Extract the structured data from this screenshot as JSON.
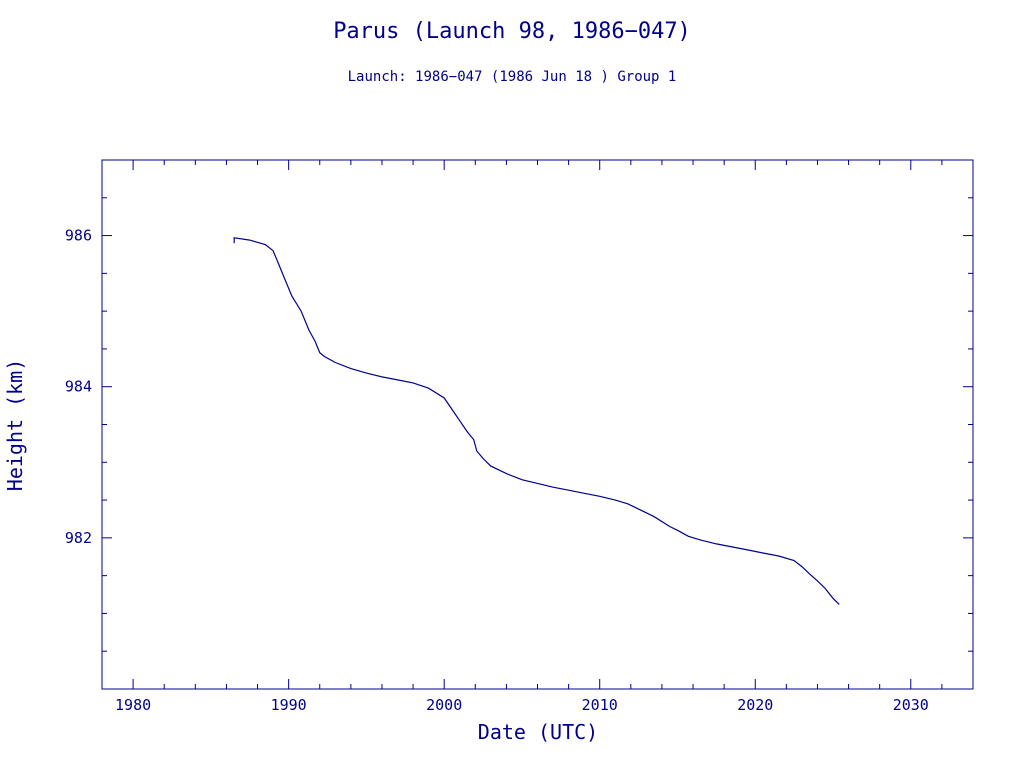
{
  "title": "Parus (Launch 98, 1986−047)",
  "subtitle": "Launch: 1986−047  (1986 Jun 18 )  Group 1",
  "colors": {
    "ink": "#00008b"
  },
  "chart_data": {
    "type": "line",
    "xlabel": "Date (UTC)",
    "ylabel": "Height (km)",
    "xlim": [
      1978,
      2034
    ],
    "ylim": [
      980,
      987
    ],
    "x_ticks": [
      1980,
      1990,
      2000,
      2010,
      2020,
      2030
    ],
    "y_ticks": [
      982,
      984,
      986
    ],
    "grid": false,
    "series": [
      {
        "x": [
          1986.5,
          1986.5,
          1987.5,
          1988.5,
          1989.0,
          1989.3,
          1989.7,
          1990.2,
          1990.8,
          1991.1,
          1991.3,
          1991.7,
          1992.0,
          1992.3,
          1993.0,
          1994.0,
          1995.0,
          1996.0,
          1997.0,
          1998.0,
          1999.0,
          2000.0,
          2000.5,
          2001.0,
          2001.5,
          2001.9,
          2002.1,
          2002.5,
          2003.0,
          2004.0,
          2005.0,
          2006.0,
          2007.0,
          2008.0,
          2009.0,
          2010.0,
          2011.0,
          2011.8,
          2012.5,
          2013.5,
          2014.5,
          2015.0,
          2015.7,
          2016.5,
          2017.5,
          2018.5,
          2019.5,
          2020.5,
          2021.5,
          2022.5,
          2023.0,
          2023.5,
          2024.0,
          2024.5,
          2025.0,
          2025.4
        ],
        "y": [
          985.9,
          985.97,
          985.94,
          985.88,
          985.8,
          985.65,
          985.45,
          985.2,
          985.0,
          984.85,
          984.75,
          984.6,
          984.45,
          984.4,
          984.32,
          984.24,
          984.18,
          984.13,
          984.09,
          984.05,
          983.98,
          983.85,
          983.7,
          983.55,
          983.4,
          983.3,
          983.15,
          983.05,
          982.95,
          982.85,
          982.77,
          982.72,
          982.67,
          982.63,
          982.59,
          982.55,
          982.5,
          982.45,
          982.38,
          982.28,
          982.15,
          982.1,
          982.02,
          981.97,
          981.92,
          981.88,
          981.84,
          981.8,
          981.76,
          981.7,
          981.62,
          981.52,
          981.43,
          981.33,
          981.2,
          981.12
        ]
      }
    ]
  }
}
